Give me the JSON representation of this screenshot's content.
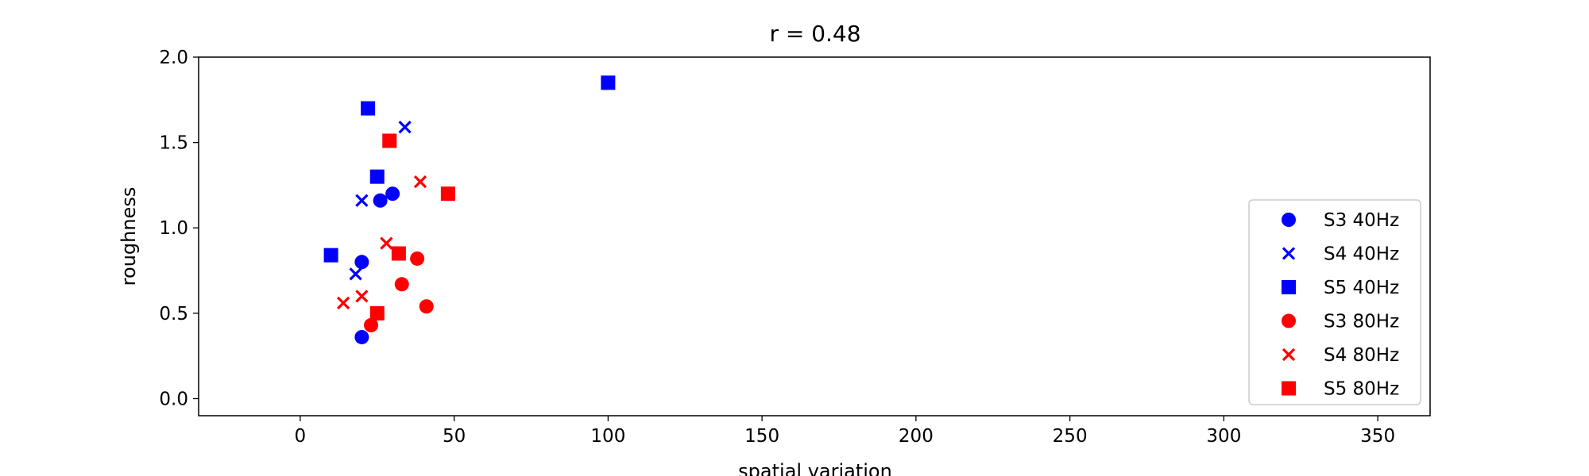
{
  "chart_data": {
    "type": "scatter",
    "title": "r = 0.48",
    "xlabel": "spatial variation",
    "ylabel": "roughness",
    "xlim": [
      -33,
      367
    ],
    "ylim": [
      -0.1,
      2.0
    ],
    "xticks": [
      0,
      50,
      100,
      150,
      200,
      250,
      300,
      350
    ],
    "yticks": [
      0.0,
      0.5,
      1.0,
      1.5,
      2.0
    ],
    "xtick_labels": [
      "0",
      "50",
      "100",
      "150",
      "200",
      "250",
      "300",
      "350"
    ],
    "ytick_labels": [
      "0.0",
      "0.5",
      "1.0",
      "1.5",
      "2.0"
    ],
    "grid": false,
    "legend_position": "lower-right",
    "series": [
      {
        "name": "S3 40Hz",
        "marker": "circle",
        "color": "#0000ff",
        "points": [
          [
            20,
            0.8
          ],
          [
            26,
            1.16
          ],
          [
            30,
            1.2
          ],
          [
            20,
            0.36
          ]
        ]
      },
      {
        "name": "S4 40Hz",
        "marker": "x",
        "color": "#0000ff",
        "points": [
          [
            34,
            1.59
          ],
          [
            20,
            1.16
          ],
          [
            18,
            0.73
          ]
        ]
      },
      {
        "name": "S5 40Hz",
        "marker": "square",
        "color": "#0000ff",
        "points": [
          [
            100,
            1.85
          ],
          [
            22,
            1.7
          ],
          [
            25,
            1.3
          ],
          [
            10,
            0.84
          ]
        ]
      },
      {
        "name": "S3 80Hz",
        "marker": "circle",
        "color": "#ff0000",
        "points": [
          [
            38,
            0.82
          ],
          [
            33,
            0.67
          ],
          [
            41,
            0.54
          ],
          [
            23,
            0.43
          ]
        ]
      },
      {
        "name": "S4 80Hz",
        "marker": "x",
        "color": "#ff0000",
        "points": [
          [
            39,
            1.27
          ],
          [
            28,
            0.91
          ],
          [
            14,
            0.56
          ],
          [
            20,
            0.6
          ]
        ]
      },
      {
        "name": "S5 80Hz",
        "marker": "square",
        "color": "#ff0000",
        "points": [
          [
            29,
            1.51
          ],
          [
            48,
            1.2
          ],
          [
            32,
            0.85
          ],
          [
            25,
            0.5
          ]
        ]
      }
    ]
  }
}
